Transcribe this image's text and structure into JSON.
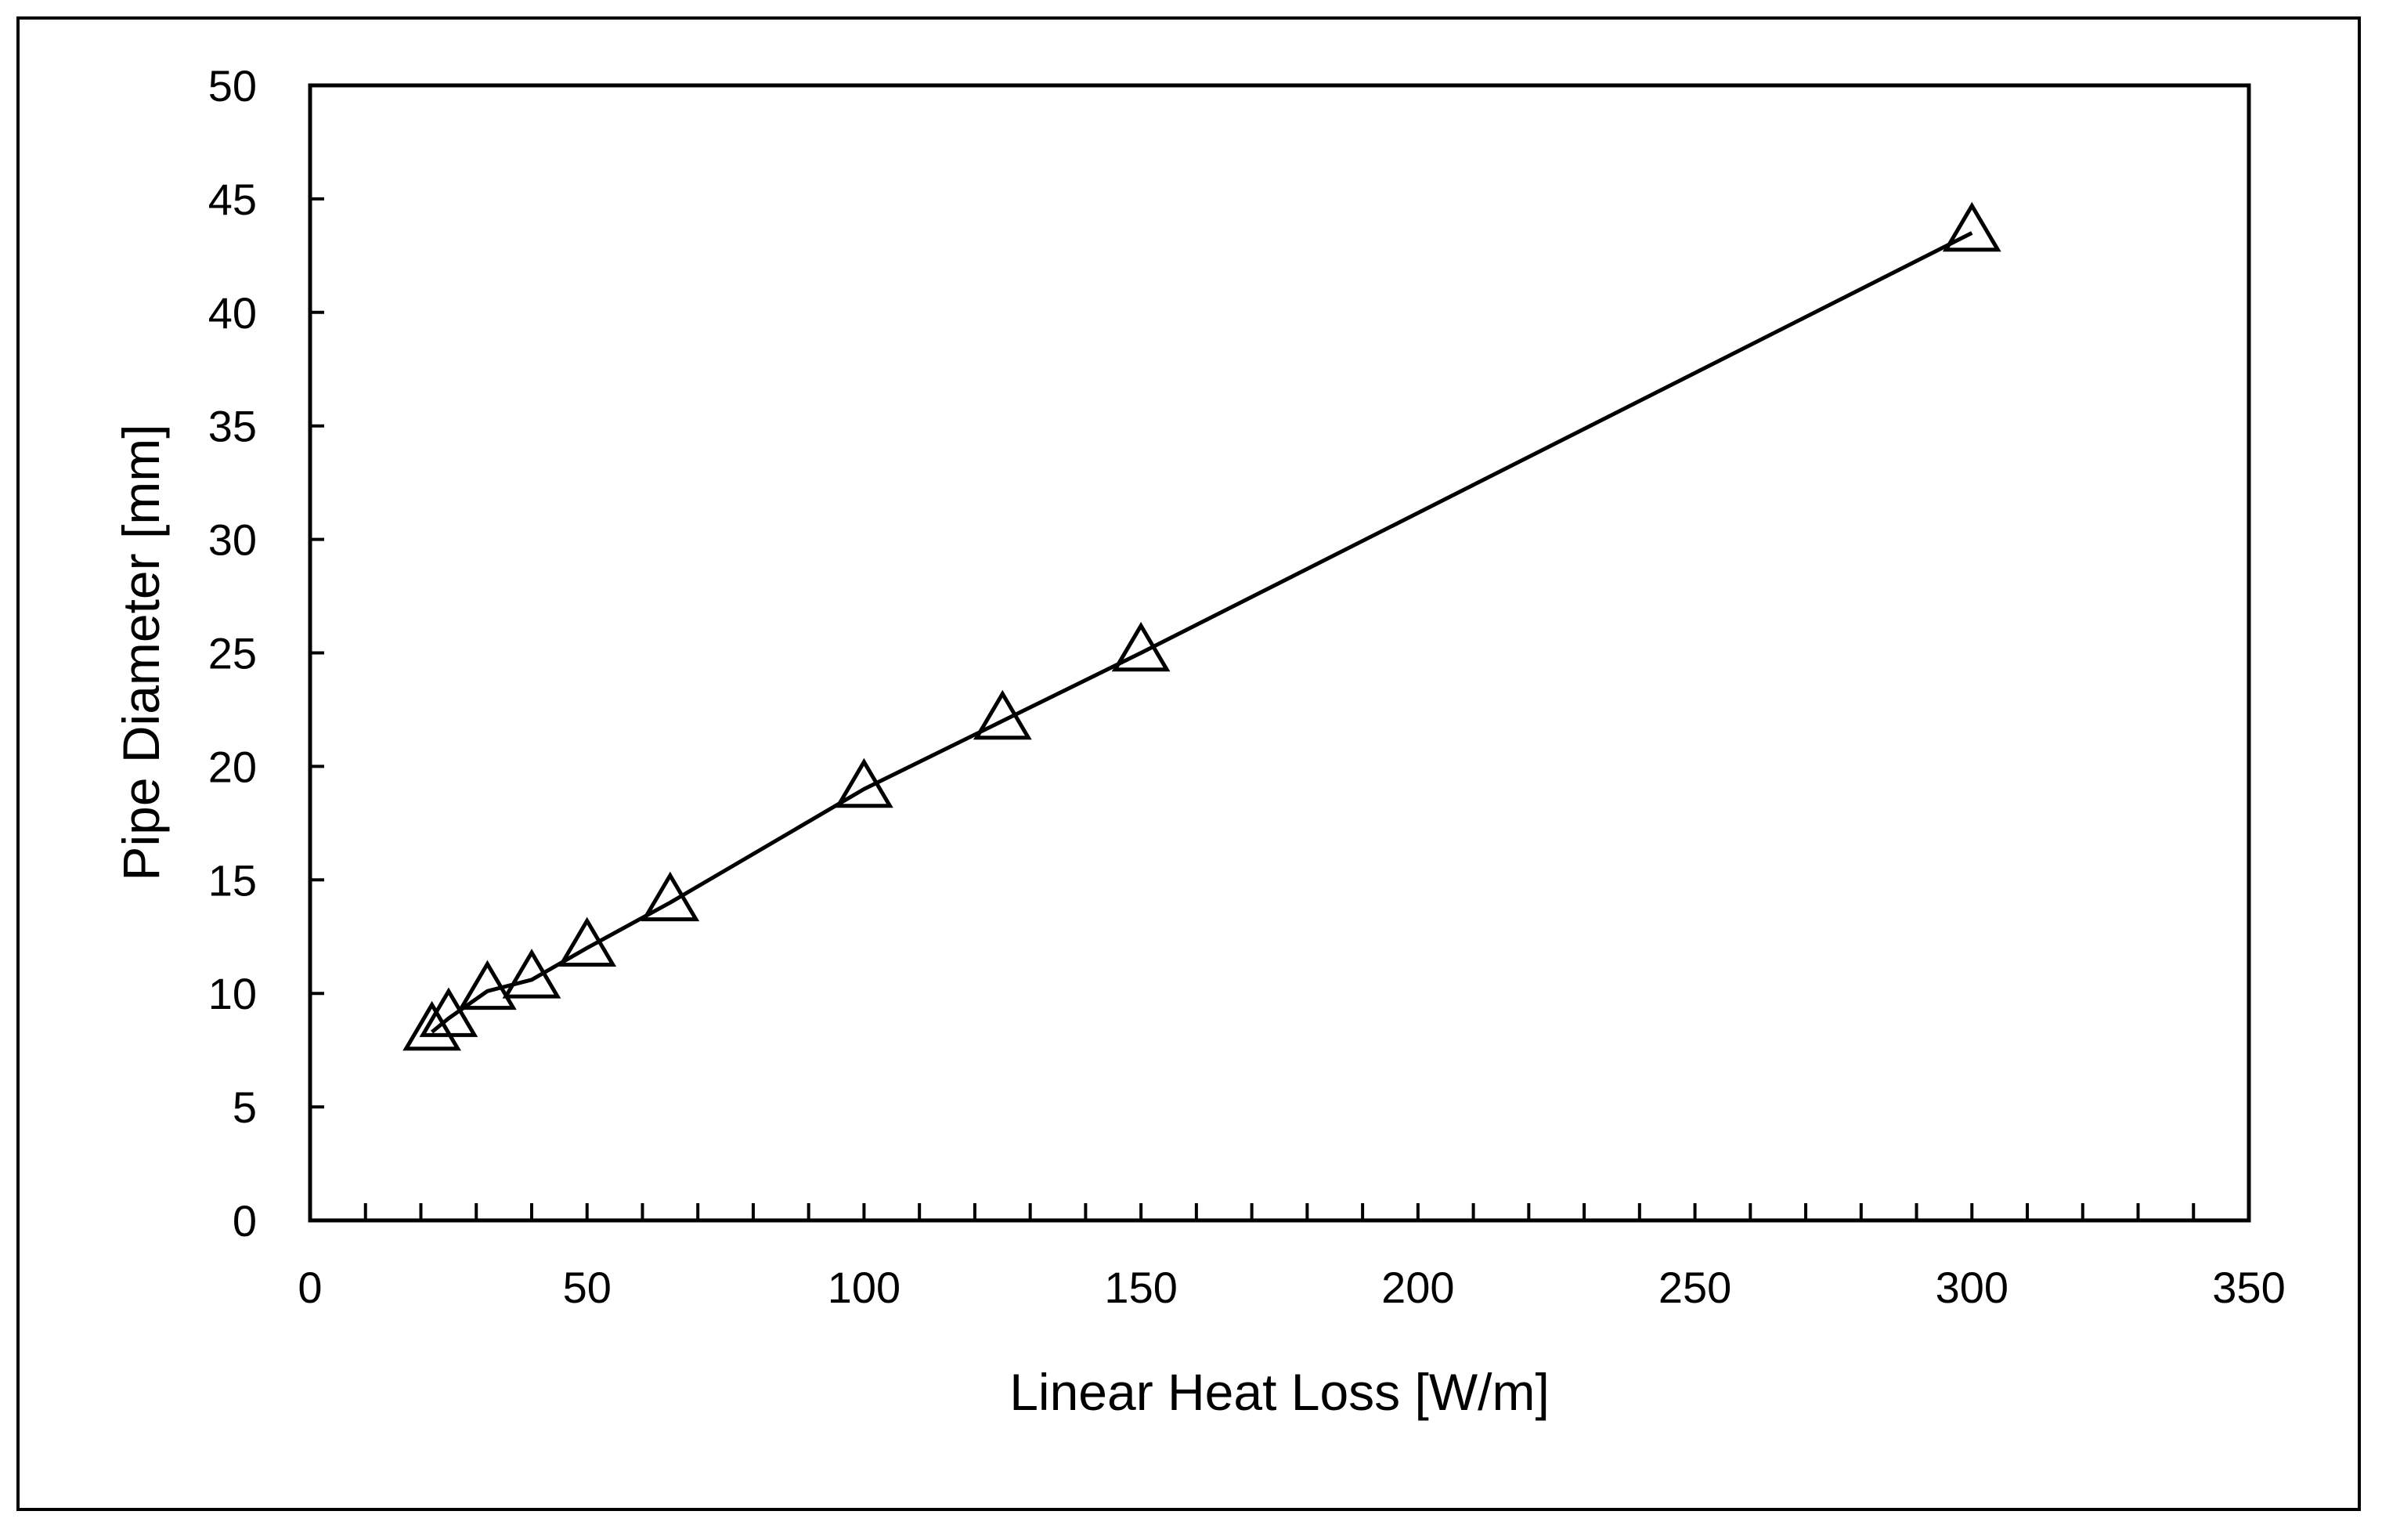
{
  "chart_data": {
    "type": "line",
    "title": "",
    "xlabel": "Linear Heat Loss [W/m]",
    "ylabel": "Pipe Diameter [mm]",
    "xlim": [
      0,
      350
    ],
    "ylim": [
      0,
      50
    ],
    "x_ticks": [
      0,
      50,
      100,
      150,
      200,
      250,
      300,
      350
    ],
    "x_minor_step": 10,
    "y_ticks": [
      0,
      5,
      10,
      15,
      20,
      25,
      30,
      35,
      40,
      45,
      50
    ],
    "grid": false,
    "legend": "none",
    "marker": "open-triangle",
    "series": [
      {
        "name": "Pipe Diameter",
        "x": [
          22,
          25,
          32,
          40,
          50,
          65,
          100,
          125,
          150,
          300
        ],
        "y": [
          8.3,
          8.9,
          10.1,
          10.6,
          12,
          14,
          19,
          22,
          25,
          43.5
        ]
      }
    ]
  }
}
